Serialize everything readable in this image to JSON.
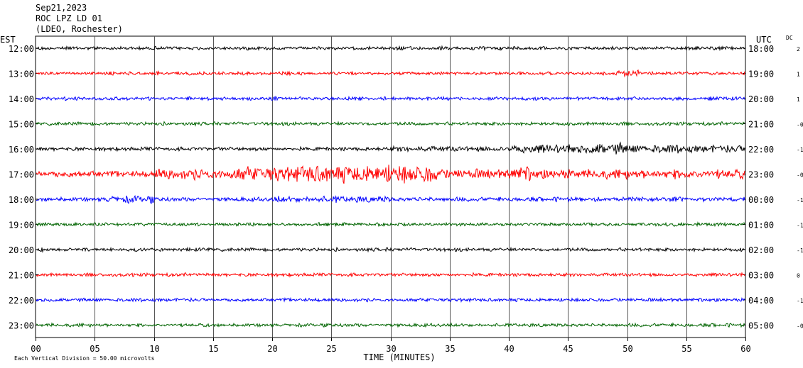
{
  "header": {
    "date": "Sep21,2023",
    "station": "ROC LPZ LD 01",
    "network": "(LDEO, Rochester)"
  },
  "chart_data": {
    "type": "line",
    "title": "ROC LPZ LD 01",
    "left_axis_label": "EST",
    "right_axis_label": "UTC",
    "dc_label": "DC",
    "xlabel": "TIME (MINUTES)",
    "xlim": [
      0,
      60
    ],
    "x_ticks": [
      0,
      5,
      10,
      15,
      20,
      25,
      30,
      35,
      40,
      45,
      50,
      55,
      60
    ],
    "x_tick_labels": [
      "00",
      "05",
      "10",
      "15",
      "20",
      "25",
      "30",
      "35",
      "40",
      "45",
      "50",
      "55",
      "60"
    ],
    "grid": true,
    "scale_note": "Each Vertical Division =   50.00 microvolts",
    "trace_colors": [
      "#000000",
      "#ff0000",
      "#0000ff",
      "#006400"
    ],
    "rows": [
      {
        "est": "12:00",
        "utc": "18:00",
        "dc": "2"
      },
      {
        "est": "13:00",
        "utc": "19:00",
        "dc": "1"
      },
      {
        "est": "14:00",
        "utc": "20:00",
        "dc": "1"
      },
      {
        "est": "15:00",
        "utc": "21:00",
        "dc": "-0"
      },
      {
        "est": "16:00",
        "utc": "22:00",
        "dc": "-1"
      },
      {
        "est": "17:00",
        "utc": "23:00",
        "dc": "-0"
      },
      {
        "est": "18:00",
        "utc": "00:00",
        "dc": "-1"
      },
      {
        "est": "19:00",
        "utc": "01:00",
        "dc": "-1"
      },
      {
        "est": "20:00",
        "utc": "02:00",
        "dc": "-1"
      },
      {
        "est": "21:00",
        "utc": "03:00",
        "dc": "0"
      },
      {
        "est": "22:00",
        "utc": "04:00",
        "dc": "-1"
      },
      {
        "est": "23:00",
        "utc": "05:00",
        "dc": "-0"
      }
    ]
  }
}
